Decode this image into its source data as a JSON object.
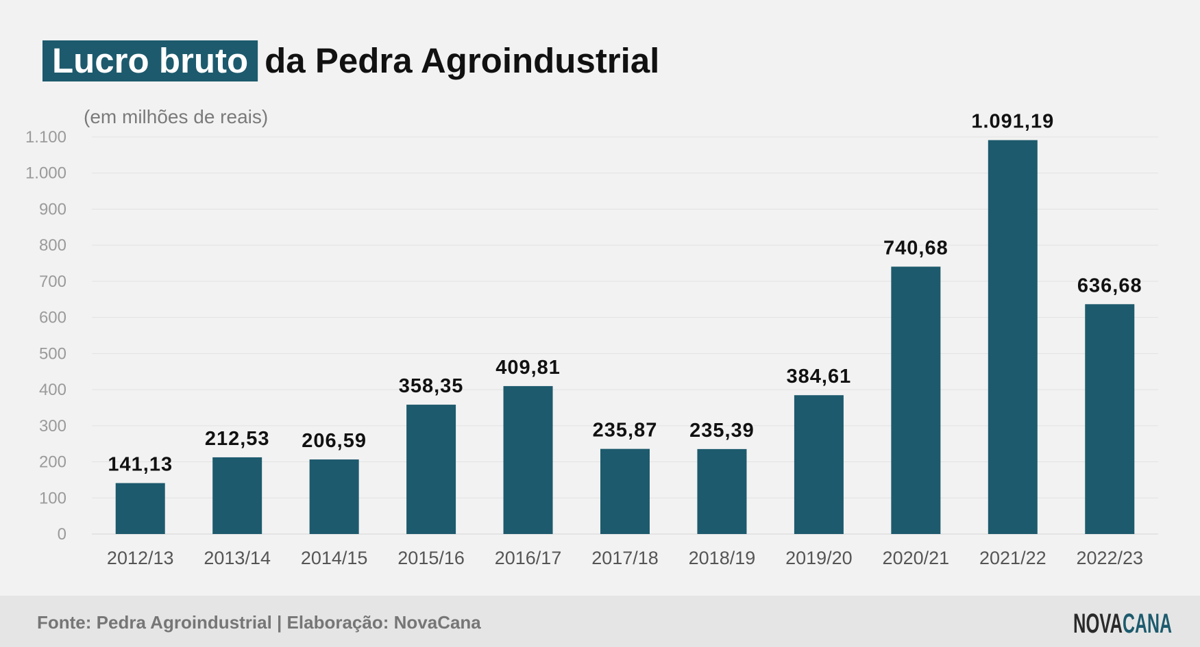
{
  "header": {
    "title_highlight": "Lucro bruto",
    "title_rest": "da Pedra Agroindustrial"
  },
  "footer": {
    "source": "Fonte: Pedra Agroindustrial | Elaboração: NovaCana",
    "logo_part1": "NOVA",
    "logo_part2": "CANA"
  },
  "colors": {
    "bar": "#1d5a6d",
    "highlight": "#1d5a6d",
    "background": "#f2f2f2",
    "footer_band": "#e5e5e5"
  },
  "chart_data": {
    "type": "bar",
    "subtitle": "(em milhões de reais)",
    "categories": [
      "2012/13",
      "2013/14",
      "2014/15",
      "2015/16",
      "2016/17",
      "2017/18",
      "2018/19",
      "2019/20",
      "2020/21",
      "2021/22",
      "2022/23"
    ],
    "values": [
      141.13,
      212.53,
      206.59,
      358.35,
      409.81,
      235.87,
      235.39,
      384.61,
      740.68,
      1091.19,
      636.68
    ],
    "value_labels": [
      "141,13",
      "212,53",
      "206,59",
      "358,35",
      "409,81",
      "235,87",
      "235,39",
      "384,61",
      "740,68",
      "1.091,19",
      "636,68"
    ],
    "ylim": [
      0,
      1100
    ],
    "y_ticks": [
      0,
      100,
      200,
      300,
      400,
      500,
      600,
      700,
      800,
      900,
      1000,
      1100
    ],
    "y_tick_labels": [
      "0",
      "100",
      "200",
      "300",
      "400",
      "500",
      "600",
      "700",
      "800",
      "900",
      "1.000",
      "1.100"
    ],
    "grid": true,
    "legend": "none"
  }
}
